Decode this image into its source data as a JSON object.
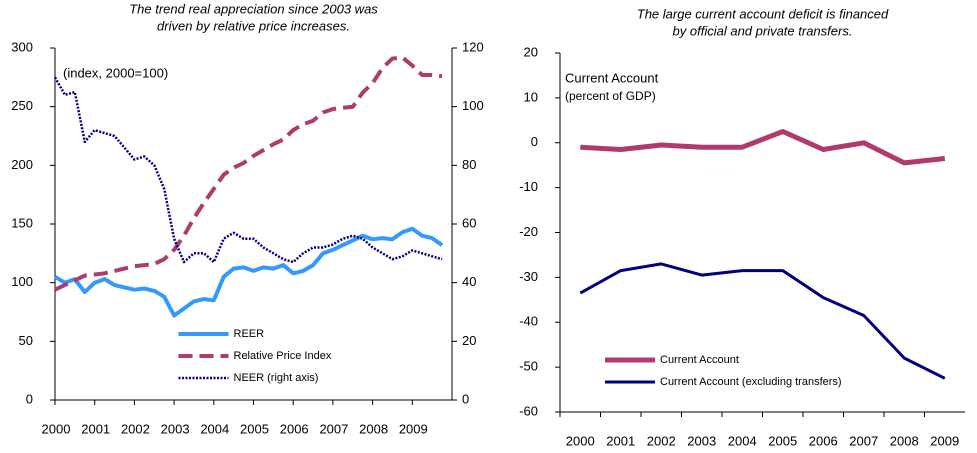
{
  "chart_data": [
    {
      "type": "line",
      "title": [
        "The trend real appreciation since 2003 was",
        "driven by relative price increases."
      ],
      "annotations": [
        "(index, 2000=100)"
      ],
      "x": [
        2000,
        2000.25,
        2000.5,
        2000.75,
        2001,
        2001.25,
        2001.5,
        2001.75,
        2002,
        2002.25,
        2002.5,
        2002.75,
        2003,
        2003.25,
        2003.5,
        2003.75,
        2004,
        2004.25,
        2004.5,
        2004.75,
        2005,
        2005.25,
        2005.5,
        2005.75,
        2006,
        2006.25,
        2006.5,
        2006.75,
        2007,
        2007.25,
        2007.5,
        2007.75,
        2008,
        2008.25,
        2008.5,
        2008.75,
        2009,
        2009.25,
        2009.5,
        2009.75
      ],
      "xlim": [
        2000,
        2010
      ],
      "xticks": [
        2000,
        2001,
        2002,
        2003,
        2004,
        2005,
        2006,
        2007,
        2008,
        2009
      ],
      "ylim": [
        0,
        300
      ],
      "yticks": [
        0,
        50,
        100,
        150,
        200,
        250,
        300
      ],
      "y2lim": [
        0,
        120
      ],
      "y2ticks": [
        0,
        20,
        40,
        60,
        80,
        100,
        120
      ],
      "legend": "lower center",
      "series": [
        {
          "name": "REER",
          "color": "#3399ff",
          "style": "solid",
          "width": 4,
          "values": [
            105,
            100,
            103,
            92,
            100,
            103,
            98,
            96,
            94,
            95,
            93,
            88,
            72,
            78,
            84,
            86,
            85,
            105,
            112,
            113,
            110,
            113,
            112,
            115,
            108,
            110,
            115,
            125,
            128,
            132,
            136,
            140,
            137,
            138,
            137,
            143,
            146,
            140,
            138,
            132
          ]
        },
        {
          "name": "Relative Price Index",
          "color": "#b03a6e",
          "style": "dashed",
          "width": 4,
          "values": [
            94,
            98,
            102,
            106,
            107,
            108,
            110,
            112,
            114,
            115,
            116,
            120,
            128,
            140,
            155,
            168,
            180,
            192,
            198,
            202,
            208,
            213,
            218,
            222,
            230,
            235,
            238,
            245,
            248,
            249,
            250,
            262,
            270,
            283,
            291,
            292,
            285,
            277,
            277,
            276
          ]
        },
        {
          "name": "NEER  (right axis)",
          "color": "#000080",
          "style": "dotted",
          "width": 2.5,
          "axis": "y2",
          "values": [
            110,
            104,
            105,
            88,
            92,
            91,
            90,
            86,
            82,
            83,
            80,
            72,
            55,
            47,
            50,
            50,
            47,
            55,
            57,
            55,
            55,
            52,
            50,
            48,
            47,
            50,
            52,
            52,
            53,
            55,
            56,
            55,
            52,
            50,
            48,
            49,
            51,
            50,
            49,
            48
          ]
        }
      ]
    },
    {
      "type": "line",
      "title": [
        "The large current account deficit is financed",
        "by official and private transfers."
      ],
      "annotations": [
        "Current Account",
        "(percent of GDP)"
      ],
      "categories": [
        "2000",
        "2001",
        "2002",
        "2003",
        "2004",
        "2005",
        "2006",
        "2007",
        "2008",
        "2009"
      ],
      "ylim": [
        -60,
        20
      ],
      "yticks": [
        -60,
        -50,
        -40,
        -30,
        -20,
        -10,
        0,
        10,
        20
      ],
      "legend": "lower left",
      "series": [
        {
          "name": "Current Account",
          "color": "#b03a6e",
          "style": "solid",
          "width": 5,
          "values": [
            -1,
            -1.5,
            -0.5,
            -1,
            -1,
            2.5,
            -1.5,
            0,
            -4.5,
            -3.5
          ]
        },
        {
          "name": "Current Account  (excluding  transfers)",
          "color": "#000080",
          "style": "solid",
          "width": 3,
          "values": [
            -33.5,
            -28.5,
            -27,
            -29.5,
            -28.5,
            -28.5,
            -34.5,
            -38.5,
            -48,
            -52.5
          ]
        }
      ]
    }
  ]
}
